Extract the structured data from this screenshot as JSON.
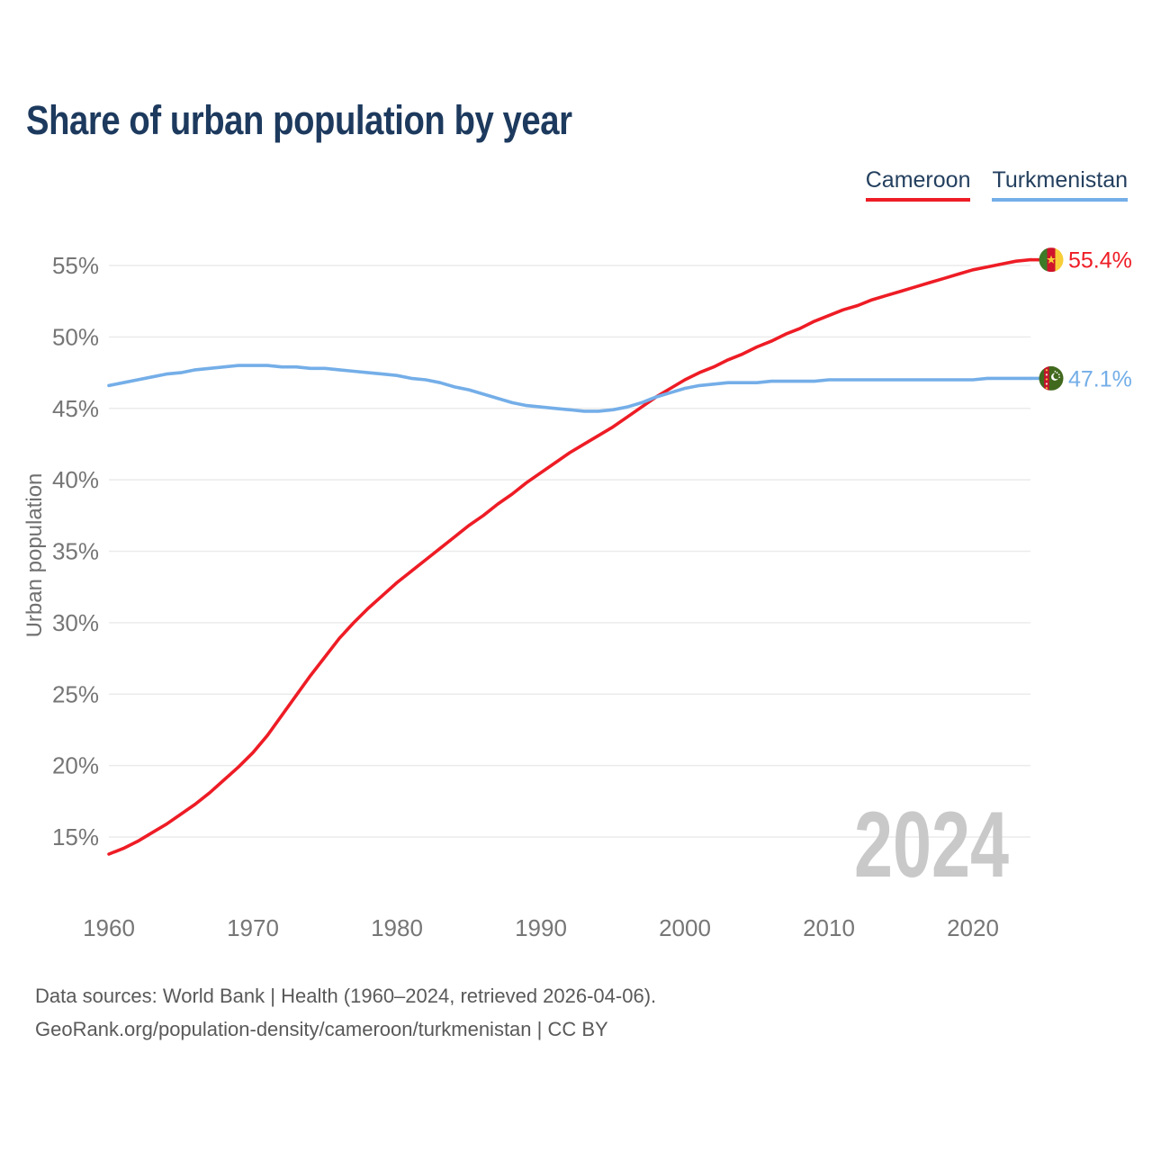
{
  "title": "Share of urban population by year",
  "legend": [
    {
      "label": "Cameroon",
      "color": "#ee1c25"
    },
    {
      "label": "Turkmenistan",
      "color": "#74aee8"
    }
  ],
  "footer": {
    "line1": "Data sources: World Bank | Health (1960–2024, retrieved 2026-04-06).",
    "line2": "GeoRank.org/population-density/cameroon/turkmenistan | CC BY"
  },
  "chart_data": {
    "type": "line",
    "title": "Share of urban population by year",
    "xlabel": "",
    "ylabel": "Urban population",
    "watermark": "2024",
    "grid": "horizontal",
    "legend_position": "top-right",
    "x_range": [
      1960,
      2024
    ],
    "ylim": [
      13,
      57
    ],
    "x_ticks": [
      1960,
      1970,
      1980,
      1990,
      2000,
      2010,
      2020
    ],
    "x_tick_labels": [
      "1960",
      "1970",
      "1980",
      "1990",
      "2000",
      "2010",
      "2020"
    ],
    "y_ticks": [
      15,
      20,
      25,
      30,
      35,
      40,
      45,
      50,
      55
    ],
    "y_tick_labels": [
      "15%",
      "20%",
      "25%",
      "30%",
      "35%",
      "40%",
      "45%",
      "50%",
      "55%"
    ],
    "x": [
      1960,
      1961,
      1962,
      1963,
      1964,
      1965,
      1966,
      1967,
      1968,
      1969,
      1970,
      1971,
      1972,
      1973,
      1974,
      1975,
      1976,
      1977,
      1978,
      1979,
      1980,
      1981,
      1982,
      1983,
      1984,
      1985,
      1986,
      1987,
      1988,
      1989,
      1990,
      1991,
      1992,
      1993,
      1994,
      1995,
      1996,
      1997,
      1998,
      1999,
      2000,
      2001,
      2002,
      2003,
      2004,
      2005,
      2006,
      2007,
      2008,
      2009,
      2010,
      2011,
      2012,
      2013,
      2014,
      2015,
      2016,
      2017,
      2018,
      2019,
      2020,
      2021,
      2022,
      2023,
      2024
    ],
    "series": [
      {
        "name": "Cameroon",
        "color": "#ee1c25",
        "end_label": "55.4%",
        "end_value": 55.4,
        "flag": "cameroon",
        "values": [
          13.8,
          14.2,
          14.7,
          15.3,
          15.9,
          16.6,
          17.3,
          18.1,
          19.0,
          19.9,
          20.9,
          22.1,
          23.5,
          24.9,
          26.3,
          27.6,
          28.9,
          30.0,
          31.0,
          31.9,
          32.8,
          33.6,
          34.4,
          35.2,
          36.0,
          36.8,
          37.5,
          38.3,
          39.0,
          39.8,
          40.5,
          41.2,
          41.9,
          42.5,
          43.1,
          43.7,
          44.4,
          45.1,
          45.8,
          46.4,
          47.0,
          47.5,
          47.9,
          48.4,
          48.8,
          49.3,
          49.7,
          50.2,
          50.6,
          51.1,
          51.5,
          51.9,
          52.2,
          52.6,
          52.9,
          53.2,
          53.5,
          53.8,
          54.1,
          54.4,
          54.7,
          54.9,
          55.1,
          55.3,
          55.4
        ]
      },
      {
        "name": "Turkmenistan",
        "color": "#74aee8",
        "end_label": "47.1%",
        "end_value": 47.1,
        "flag": "turkmenistan",
        "values": [
          46.6,
          46.8,
          47.0,
          47.2,
          47.4,
          47.5,
          47.7,
          47.8,
          47.9,
          48.0,
          48.0,
          48.0,
          47.9,
          47.9,
          47.8,
          47.8,
          47.7,
          47.6,
          47.5,
          47.4,
          47.3,
          47.1,
          47.0,
          46.8,
          46.5,
          46.3,
          46.0,
          45.7,
          45.4,
          45.2,
          45.1,
          45.0,
          44.9,
          44.8,
          44.8,
          44.9,
          45.1,
          45.4,
          45.8,
          46.1,
          46.4,
          46.6,
          46.7,
          46.8,
          46.8,
          46.8,
          46.9,
          46.9,
          46.9,
          46.9,
          47.0,
          47.0,
          47.0,
          47.0,
          47.0,
          47.0,
          47.0,
          47.0,
          47.0,
          47.0,
          47.0,
          47.1,
          47.1,
          47.1,
          47.1
        ]
      }
    ]
  }
}
